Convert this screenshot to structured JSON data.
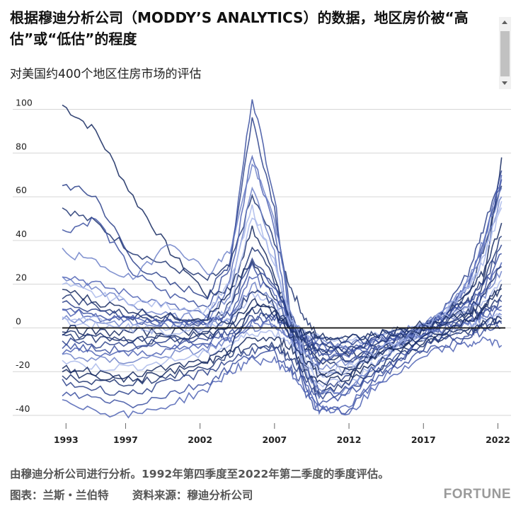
{
  "header": {
    "title": "根据穆迪分析公司（MODDY’S ANALYTICS）的数据，地区房价被“高估”或“低估”的程度",
    "subtitle": "对美国约400个地区住房市场的评估"
  },
  "footer": {
    "note": "由穆迪分析公司进行分析。1992年第四季度至2022年第二季度的季度评估。",
    "chart_by": "图表：兰斯・兰伯特",
    "source": "资料来源：穆迪分析公司",
    "brand": "FORTUNE"
  },
  "scrollbar": {
    "position": "top"
  },
  "chart_data": {
    "type": "line",
    "xlim": [
      1992.75,
      2022.5
    ],
    "ylim": [
      -40,
      100
    ],
    "x_ticks": [
      1993,
      1997,
      2002,
      2007,
      2012,
      2017,
      2022
    ],
    "x_tick_labels": [
      "1993",
      "1997",
      "2002",
      "2007",
      "2012",
      "2017",
      "2022"
    ],
    "y_ticks": [
      -40,
      -20,
      0,
      20,
      40,
      60,
      80,
      100
    ],
    "y_tick_labels": [
      "-40",
      "-20",
      "0",
      "20",
      "40",
      "60",
      "80",
      "100"
    ],
    "grid": "horizontal",
    "legend": "none",
    "colors": {
      "dark": "#13275e",
      "mid": "#3a4fa0",
      "light": "#a9b8ea"
    },
    "x": [
      1992.75,
      1995,
      1997.5,
      2000,
      2002.5,
      2004,
      2005.5,
      2007,
      2008,
      2009,
      2010,
      2012,
      2014,
      2016,
      2018,
      2020,
      2021,
      2022.25
    ],
    "series": [
      {
        "values": [
          102,
          90,
          60,
          35,
          15,
          18,
          30,
          15,
          0,
          -10,
          -15,
          -12,
          -10,
          -8,
          -5,
          5,
          20,
          78
        ]
      },
      {
        "values": [
          55,
          48,
          35,
          28,
          22,
          28,
          60,
          40,
          20,
          5,
          -5,
          -15,
          -10,
          -5,
          0,
          15,
          35,
          65
        ]
      },
      {
        "values": [
          66,
          60,
          30,
          20,
          15,
          30,
          96,
          55,
          10,
          -15,
          -30,
          -20,
          -10,
          -5,
          5,
          25,
          45,
          72
        ]
      },
      {
        "values": [
          44,
          50,
          25,
          15,
          10,
          28,
          106,
          60,
          5,
          -30,
          -38,
          -38,
          -20,
          -10,
          0,
          20,
          40,
          68
        ]
      },
      {
        "values": [
          25,
          20,
          15,
          10,
          5,
          20,
          80,
          45,
          0,
          -25,
          -35,
          -40,
          -25,
          -10,
          0,
          20,
          38,
          70
        ]
      },
      {
        "values": [
          22,
          18,
          10,
          5,
          5,
          15,
          65,
          35,
          0,
          -20,
          -28,
          -30,
          -15,
          -5,
          5,
          20,
          35,
          60
        ]
      },
      {
        "values": [
          20,
          15,
          12,
          10,
          8,
          20,
          55,
          30,
          5,
          -15,
          -25,
          -25,
          -15,
          -5,
          5,
          18,
          30,
          55
        ]
      },
      {
        "values": [
          18,
          12,
          8,
          5,
          5,
          15,
          45,
          25,
          5,
          -10,
          -20,
          -22,
          -12,
          -5,
          5,
          15,
          25,
          48
        ]
      },
      {
        "values": [
          15,
          10,
          5,
          5,
          3,
          10,
          38,
          22,
          5,
          -8,
          -15,
          -18,
          -10,
          -3,
          5,
          12,
          22,
          42
        ]
      },
      {
        "values": [
          12,
          8,
          5,
          3,
          2,
          8,
          32,
          20,
          5,
          -5,
          -12,
          -15,
          -8,
          -2,
          5,
          12,
          20,
          38
        ]
      },
      {
        "values": [
          10,
          6,
          4,
          2,
          2,
          6,
          28,
          18,
          5,
          -5,
          -10,
          -12,
          -6,
          -2,
          4,
          10,
          18,
          34
        ]
      },
      {
        "values": [
          8,
          5,
          3,
          2,
          2,
          5,
          24,
          15,
          4,
          -4,
          -8,
          -10,
          -5,
          -1,
          4,
          10,
          16,
          30
        ]
      },
      {
        "values": [
          5,
          3,
          2,
          1,
          1,
          4,
          20,
          12,
          3,
          -3,
          -6,
          -8,
          -4,
          0,
          4,
          8,
          14,
          26
        ]
      },
      {
        "values": [
          3,
          1,
          0,
          0,
          0,
          3,
          16,
          10,
          2,
          -2,
          -5,
          -6,
          -3,
          0,
          3,
          8,
          12,
          22
        ]
      },
      {
        "values": [
          0,
          -2,
          -2,
          -2,
          -1,
          2,
          12,
          8,
          1,
          -2,
          -4,
          -5,
          -3,
          0,
          3,
          6,
          10,
          18
        ]
      },
      {
        "values": [
          -3,
          -5,
          -5,
          -4,
          -3,
          0,
          8,
          6,
          0,
          -3,
          -5,
          -5,
          -3,
          -1,
          2,
          5,
          8,
          15
        ]
      },
      {
        "values": [
          -6,
          -8,
          -8,
          -6,
          -5,
          -2,
          5,
          5,
          0,
          -5,
          -8,
          -7,
          -4,
          -2,
          1,
          4,
          7,
          12
        ]
      },
      {
        "values": [
          -8,
          -10,
          -10,
          -8,
          -6,
          -3,
          4,
          4,
          -2,
          -8,
          -12,
          -10,
          -6,
          -3,
          0,
          3,
          6,
          10
        ]
      },
      {
        "values": [
          -10,
          -12,
          -12,
          -10,
          -8,
          -5,
          2,
          2,
          -4,
          -10,
          -15,
          -12,
          -8,
          -4,
          -1,
          2,
          5,
          8
        ]
      },
      {
        "values": [
          -12,
          -15,
          -15,
          -12,
          -10,
          -6,
          0,
          0,
          -5,
          -12,
          -18,
          -15,
          -10,
          -5,
          -2,
          1,
          4,
          6
        ]
      },
      {
        "values": [
          -15,
          -18,
          -18,
          -15,
          -12,
          -8,
          -2,
          -2,
          -6,
          -15,
          -20,
          -18,
          -12,
          -6,
          -3,
          0,
          3,
          5
        ]
      },
      {
        "values": [
          -18,
          -20,
          -22,
          -18,
          -15,
          -10,
          -5,
          -5,
          -8,
          -18,
          -25,
          -22,
          -15,
          -8,
          -4,
          -1,
          2,
          4
        ]
      },
      {
        "values": [
          -22,
          -25,
          -25,
          -22,
          -18,
          -12,
          -8,
          -8,
          -12,
          -20,
          -30,
          -25,
          -18,
          -10,
          -5,
          -2,
          1,
          3
        ]
      },
      {
        "values": [
          -25,
          -28,
          -30,
          -25,
          -20,
          -15,
          -10,
          -10,
          -15,
          -22,
          -32,
          -28,
          -20,
          -12,
          -6,
          -3,
          0,
          2
        ]
      },
      {
        "values": [
          -30,
          -32,
          -35,
          -30,
          -25,
          -18,
          -12,
          -12,
          -18,
          -25,
          -35,
          -30,
          -22,
          -15,
          -8,
          -5,
          -2,
          0
        ]
      },
      {
        "values": [
          -32,
          -38,
          -40,
          -35,
          -28,
          -20,
          -15,
          -15,
          -20,
          -28,
          -38,
          -35,
          -25,
          -18,
          -10,
          -8,
          -5,
          -8
        ]
      },
      {
        "values": [
          35,
          30,
          22,
          40,
          25,
          35,
          75,
          50,
          10,
          -18,
          -30,
          -28,
          -15,
          -5,
          5,
          22,
          40,
          64
        ]
      },
      {
        "values": [
          6,
          4,
          0,
          -2,
          0,
          10,
          52,
          30,
          6,
          -10,
          -22,
          -20,
          -10,
          -3,
          5,
          18,
          32,
          58
        ]
      },
      {
        "values": [
          -20,
          -22,
          -24,
          -20,
          -16,
          -10,
          10,
          8,
          -3,
          -14,
          -22,
          -20,
          -12,
          -6,
          -2,
          3,
          8,
          20
        ]
      },
      {
        "values": [
          -2,
          -4,
          -6,
          -5,
          -4,
          2,
          18,
          10,
          0,
          -6,
          -10,
          -10,
          -6,
          -2,
          2,
          8,
          14,
          28
        ]
      }
    ]
  }
}
